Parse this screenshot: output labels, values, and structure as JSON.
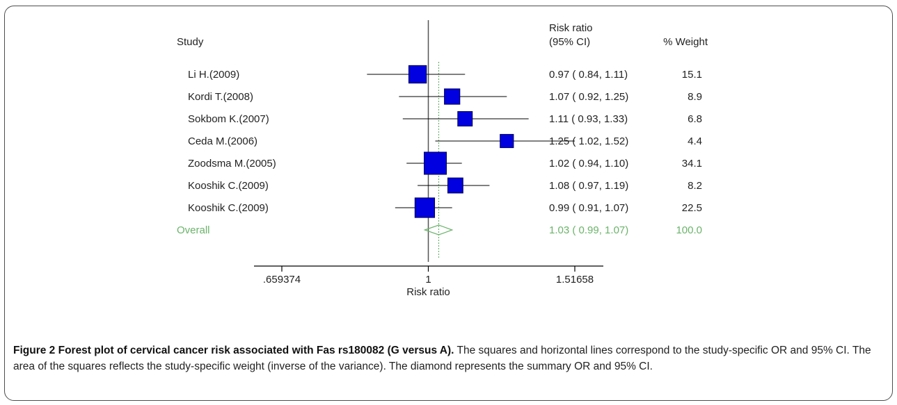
{
  "chart_data": {
    "type": "forest",
    "headers": {
      "study": "Study",
      "ratio_line1": "Risk ratio",
      "ratio_line2": "(95% CI)",
      "weight": "% Weight"
    },
    "xlabel": "Risk ratio",
    "x_ticks": [
      {
        "value": 0.659374,
        "label": ".659374"
      },
      {
        "value": 1,
        "label": "1"
      },
      {
        "value": 1.51658,
        "label": "1.51658"
      }
    ],
    "x_scale": "log",
    "x_range": [
      0.659374,
      1.51658
    ],
    "reference_line": 1,
    "summary_line": 1.03,
    "studies": [
      {
        "name": "Li H.(2009)",
        "rr": 0.97,
        "lo": 0.84,
        "hi": 1.11,
        "label": "0.97 ( 0.84, 1.11)",
        "weight": 15.1,
        "weight_label": "15.1"
      },
      {
        "name": "Kordi T.(2008)",
        "rr": 1.07,
        "lo": 0.92,
        "hi": 1.25,
        "label": "1.07 ( 0.92, 1.25)",
        "weight": 8.9,
        "weight_label": "8.9"
      },
      {
        "name": "Sokbom K.(2007)",
        "rr": 1.11,
        "lo": 0.93,
        "hi": 1.33,
        "label": "1.11 ( 0.93, 1.33)",
        "weight": 6.8,
        "weight_label": "6.8"
      },
      {
        "name": "Ceda M.(2006)",
        "rr": 1.25,
        "lo": 1.02,
        "hi": 1.52,
        "label": "1.25 ( 1.02, 1.52)",
        "weight": 4.4,
        "weight_label": "4.4"
      },
      {
        "name": "Zoodsma M.(2005)",
        "rr": 1.02,
        "lo": 0.94,
        "hi": 1.1,
        "label": "1.02 ( 0.94, 1.10)",
        "weight": 34.1,
        "weight_label": "34.1"
      },
      {
        "name": "Kooshik C.(2009)",
        "rr": 1.08,
        "lo": 0.97,
        "hi": 1.19,
        "label": "1.08 ( 0.97, 1.19)",
        "weight": 8.2,
        "weight_label": "8.2"
      },
      {
        "name": "Kooshik C.(2009)",
        "rr": 0.99,
        "lo": 0.91,
        "hi": 1.07,
        "label": "0.99 ( 0.91, 1.07)",
        "weight": 22.5,
        "weight_label": "22.5"
      }
    ],
    "overall": {
      "name": "Overall",
      "rr": 1.03,
      "lo": 0.99,
      "hi": 1.07,
      "label": "1.03 ( 0.99, 1.07)",
      "weight_label": "100.0"
    },
    "colors": {
      "square": "#0000e0",
      "square_border": "#000050",
      "overall": "#6bb36b",
      "line": "#000000"
    }
  },
  "caption": {
    "bold": "Figure 2 Forest plot of cervical cancer risk associated with Fas rs180082 (G versus A).",
    "text": " The squares and horizontal lines correspond to the study-specific OR and 95% CI. The area of the squares reflects the study-specific weight (inverse of the variance). The diamond represents the summary OR and 95% CI."
  }
}
